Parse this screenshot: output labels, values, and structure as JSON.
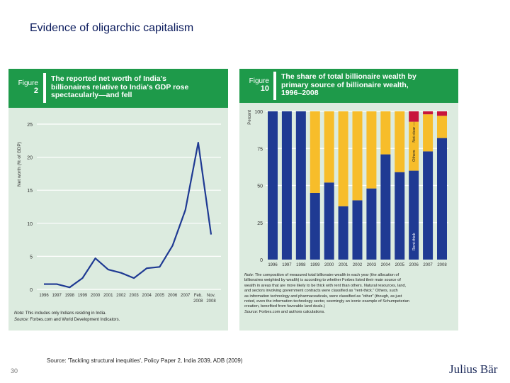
{
  "slide_title": "Evidence of oligarchic capitalism",
  "source": "Source: 'Tackling structural inequities', Policy Paper 2, India 2039, ADB (2009)",
  "page_number": "30",
  "logo": "Julius Bär",
  "chart_data": [
    {
      "type": "line",
      "figure_label": "Figure",
      "figure_number": "2",
      "title": "The reported net worth of India's billionaires relative to India's GDP rose spectacularly—and fell",
      "ylabel": "Net worth (% of GDP)",
      "xlabel": "",
      "ylim": [
        0,
        25
      ],
      "yticks": [
        "0",
        "5",
        "10",
        "15",
        "20",
        "25"
      ],
      "categories": [
        "1996",
        "1997",
        "1998",
        "1999",
        "2000",
        "2001",
        "2002",
        "2003",
        "2004",
        "2005",
        "2006",
        "2007",
        "Feb. 2008",
        "Nov. 2008"
      ],
      "values": [
        0.8,
        0.8,
        0.3,
        1.7,
        4.7,
        3.0,
        2.5,
        1.7,
        3.2,
        3.4,
        6.6,
        12.0,
        22.2,
        8.3
      ],
      "grid": true,
      "line_color": "#1f3a93",
      "note_label": "Note:",
      "note": "This includes only Indians residing in India.",
      "source_label": "Source:",
      "source": "Forbes.com and World Development Indicators."
    },
    {
      "type": "bar",
      "stacked": true,
      "figure_label": "Figure",
      "figure_number": "10",
      "title": "The share of total billionaire wealth by primary source of billionaire wealth, 1996–2008",
      "ylabel": "Percent",
      "ylim": [
        0,
        100
      ],
      "yticks": [
        "0",
        "25",
        "50",
        "75",
        "100"
      ],
      "categories": [
        "1996",
        "1997",
        "1998",
        "1999",
        "2000",
        "2001",
        "2002",
        "2003",
        "2004",
        "2005",
        "2006",
        "2007",
        "2008"
      ],
      "series": [
        {
          "name": "Rent-thick",
          "color": "#1f3a93",
          "values": [
            100,
            100,
            100,
            45,
            52,
            36,
            40,
            48,
            71,
            59,
            60,
            73,
            82
          ]
        },
        {
          "name": "Others",
          "color": "#f7bd2a",
          "values": [
            0,
            0,
            0,
            55,
            48,
            64,
            60,
            52,
            29,
            41,
            33,
            25,
            15
          ]
        },
        {
          "name": "Not clear",
          "color": "#c8143c",
          "values": [
            0,
            0,
            0,
            0,
            0,
            0,
            0,
            0,
            0,
            0,
            7,
            2,
            3
          ]
        }
      ],
      "grid": true,
      "note_label": "Note:",
      "note_lines": [
        "The composition of measured total billionaire wealth in each year (the allocation of",
        "billionaires weighted by wealth) is according to whether Forbes listed their main source of",
        "wealth in areas that are more likely to be thick with rent than others. Natural resources, land,",
        "and sectors involving government contracts were classified as \"rent-thick.\" Others, such",
        "as information technology and pharmaceuticals, were classified as \"other\" (though, as just",
        "noted, even the information technology sector, seemingly an iconic example of Schumpeterian",
        "creation, benefited from favorable land deals.)"
      ],
      "source_label": "Source:",
      "source": "Forbes.com and authors calculations."
    }
  ]
}
